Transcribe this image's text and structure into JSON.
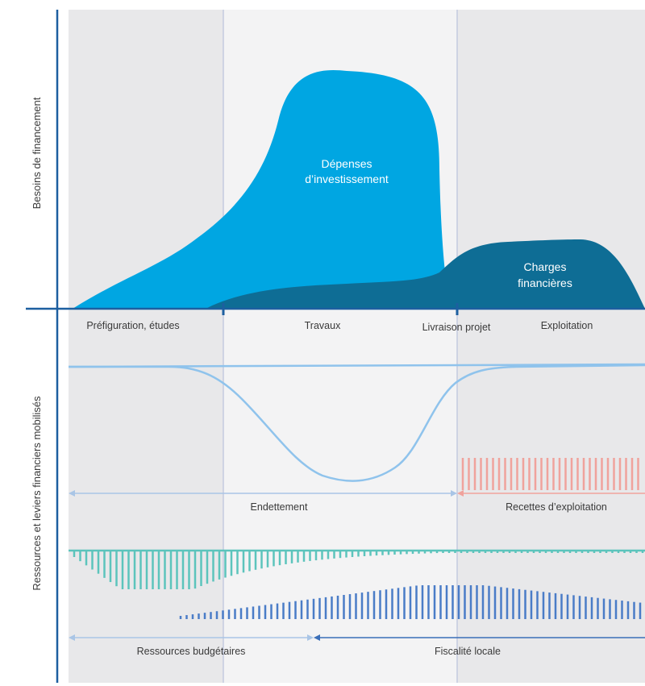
{
  "axes": {
    "top_label": "Besoins de financement",
    "bottom_label": "Ressources et leviers financiers mobilisés"
  },
  "phases": {
    "prefiguration": "Préfiguration, études",
    "travaux": "Travaux",
    "livraison": "Livraison projet",
    "exploitation": "Exploitation"
  },
  "areas": {
    "depenses_line1": "Dépenses",
    "depenses_line2": "d’investissement",
    "charges_line1": "Charges",
    "charges_line2": "financières"
  },
  "bottom": {
    "endettement": "Endettement",
    "recettes": "Recettes d’exploitation",
    "ressources_budgetaires": "Ressources budgétaires",
    "fiscalite_locale": "Fiscalité locale"
  },
  "colors": {
    "axis": "#1d5fa0",
    "phase_band_gray": "#e8e8ea",
    "phase_band_light": "#f3f3f4",
    "depenses": "#00a6e2",
    "charges": "#0e6d95",
    "endettement": "#8fc3ec",
    "recettes": "#f0a29c",
    "ressources_budgetaires": "#5cc4bc",
    "fiscalite_locale": "#4a7cc7",
    "arrow_light": "#a9c5e6",
    "arrow_dark": "#3b6fb8"
  }
}
